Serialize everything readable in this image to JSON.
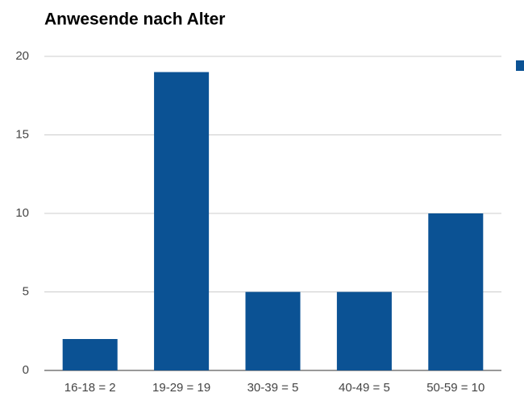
{
  "chart_data": {
    "type": "bar",
    "title": "Anwesende nach Alter",
    "categories": [
      "16-18 = 2",
      "19-29 = 19",
      "30-39 = 5",
      "40-49 = 5",
      "50-59 = 10"
    ],
    "values": [
      2,
      19,
      5,
      5,
      10
    ],
    "color": "#0b5294",
    "ylim": [
      0,
      20
    ],
    "yticks": [
      0,
      5,
      10,
      15,
      20
    ],
    "grid": true
  }
}
